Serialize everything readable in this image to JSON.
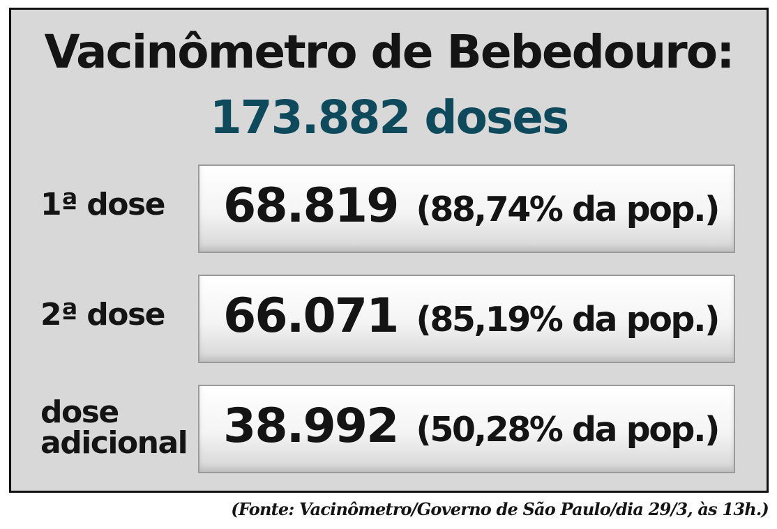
{
  "title": "Vacinômetro de Bebedouro:",
  "total": "173.882 doses",
  "colors": {
    "total_text": "#0f4a5c",
    "panel_background": "#d8d8d8",
    "text": "#141414"
  },
  "rows": [
    {
      "label": "1ª dose",
      "value": "68.819",
      "percent": "(88,74% da pop.)"
    },
    {
      "label": "2ª dose",
      "value": "66.071",
      "percent": "(85,19% da pop.)"
    },
    {
      "label_line1": "dose",
      "label_line2": "adicional",
      "value": "38.992",
      "percent": "(50,28% da pop.)"
    }
  ],
  "source": "(Fonte: Vacinômetro/Governo de São Paulo/dia 29/3, às 13h.)"
}
